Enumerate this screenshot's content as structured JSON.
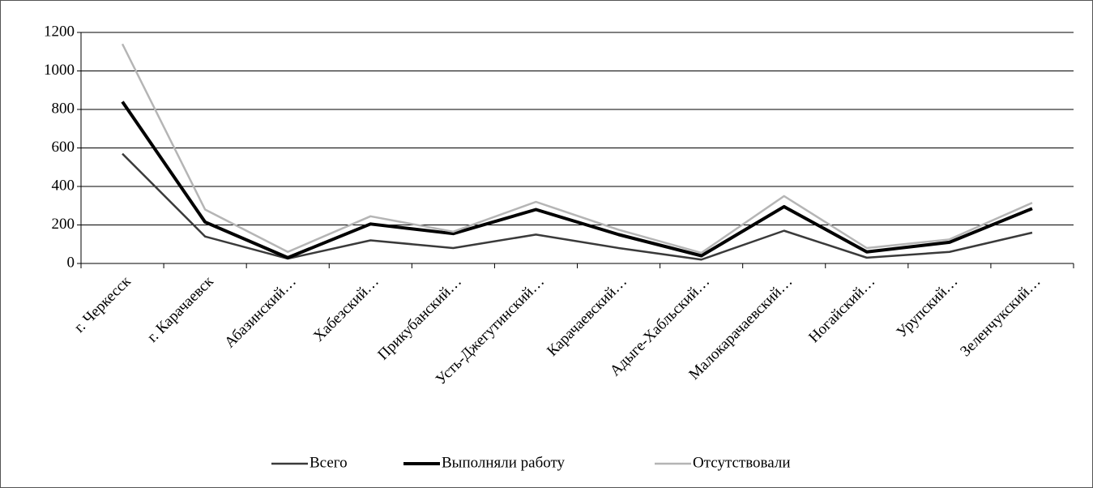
{
  "chart_data": {
    "type": "line",
    "categories": [
      "г. Черкесск",
      "г. Карачаевск",
      "Абазинский…",
      "Хабезский…",
      "Прикубанский…",
      "Усть-Джегутинский…",
      "Карачаевский…",
      "Адыге-Хабльский…",
      "Малокарачаевский…",
      "Ногайский…",
      "Урупский…",
      "Зеленчукский…"
    ],
    "series": [
      {
        "name": "Всего",
        "color": "#3a3a3a",
        "values": [
          570,
          140,
          25,
          120,
          80,
          150,
          80,
          20,
          170,
          30,
          60,
          160
        ]
      },
      {
        "name": "Выполняли работу",
        "color": "#000000",
        "values": [
          840,
          215,
          30,
          205,
          155,
          280,
          150,
          40,
          295,
          60,
          110,
          285
        ]
      },
      {
        "name": "Отсутствовали",
        "color": "#b5b5b5",
        "values": [
          1140,
          280,
          60,
          245,
          165,
          320,
          175,
          55,
          350,
          80,
          125,
          315
        ]
      }
    ],
    "ylim": [
      0,
      1200
    ],
    "yticks": [
      0,
      200,
      400,
      600,
      800,
      1000,
      1200
    ],
    "grid": true,
    "legend": "bottom"
  }
}
